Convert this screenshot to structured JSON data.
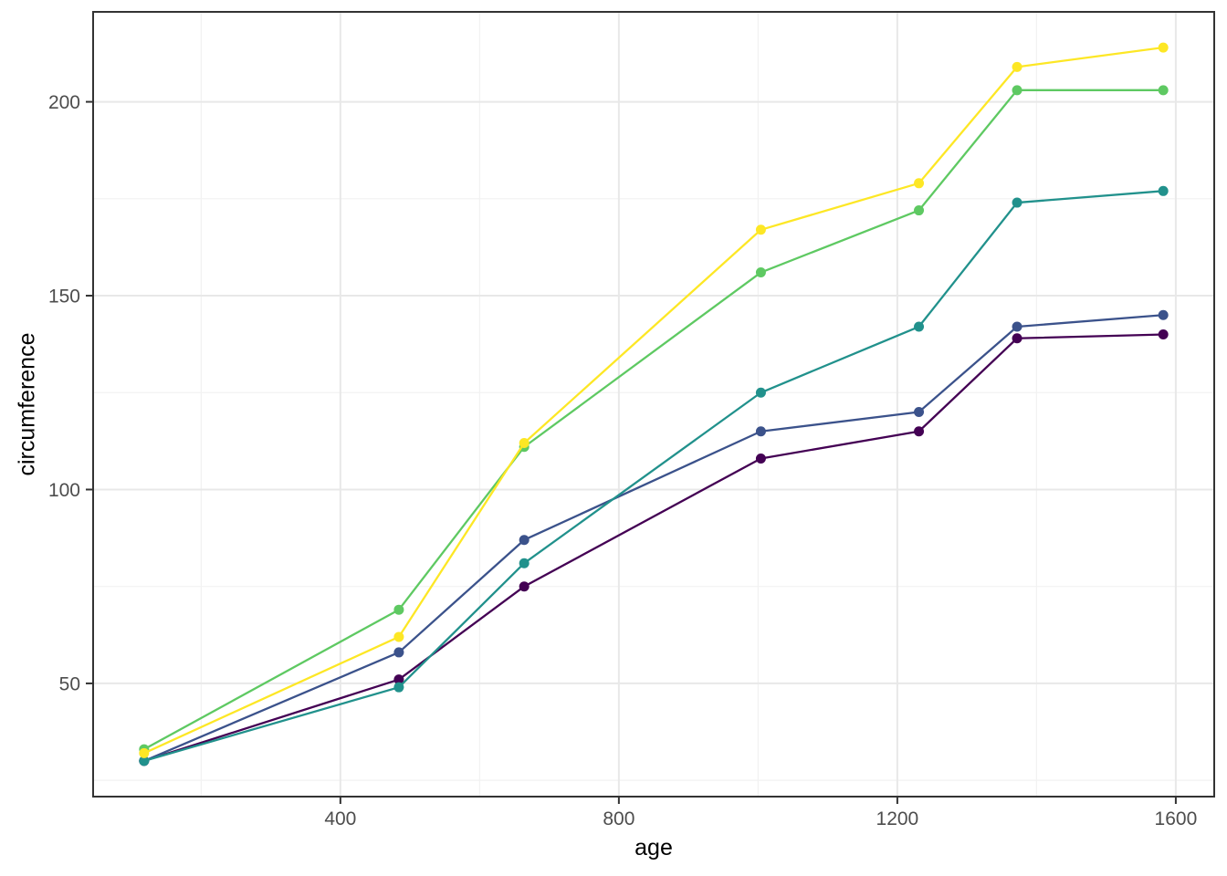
{
  "chart_data": {
    "type": "line",
    "title": "",
    "xlabel": "age",
    "ylabel": "circumference",
    "x_ticks": [
      400,
      800,
      1200,
      1600
    ],
    "y_ticks": [
      50,
      100,
      150,
      200
    ],
    "x_minor_gridlines": [
      200,
      600,
      1000,
      1400
    ],
    "y_minor_gridlines": [
      25,
      75,
      125,
      175
    ],
    "xlim": [
      44.8,
      1655.2
    ],
    "ylim": [
      20.8,
      223.2
    ],
    "grid": true,
    "legend_position": "none",
    "x": [
      118,
      484,
      664,
      1004,
      1231,
      1372,
      1582
    ],
    "series": [
      {
        "name": "series-purple",
        "color": "#440154",
        "values": [
          30,
          51,
          75,
          108,
          115,
          139,
          140
        ]
      },
      {
        "name": "series-blue",
        "color": "#3B528B",
        "values": [
          30,
          58,
          87,
          115,
          120,
          142,
          145
        ]
      },
      {
        "name": "series-teal",
        "color": "#21918C",
        "values": [
          30,
          49,
          81,
          125,
          142,
          174,
          177
        ]
      },
      {
        "name": "series-green",
        "color": "#5EC962",
        "values": [
          33,
          69,
          111,
          156,
          172,
          203,
          203
        ]
      },
      {
        "name": "series-yellow",
        "color": "#FDE725",
        "values": [
          32,
          62,
          112,
          167,
          179,
          209,
          214
        ]
      }
    ],
    "style": {
      "panel_background": "#FFFFFF",
      "panel_border_color": "#333333",
      "grid_major_color": "#E8E8E8",
      "grid_minor_color": "#F2F2F2",
      "tick_mark_color": "#333333",
      "tick_label_color": "#4D4D4D",
      "axis_title_color": "#000000",
      "point_radius": 5.5,
      "line_width": 2.3
    }
  }
}
